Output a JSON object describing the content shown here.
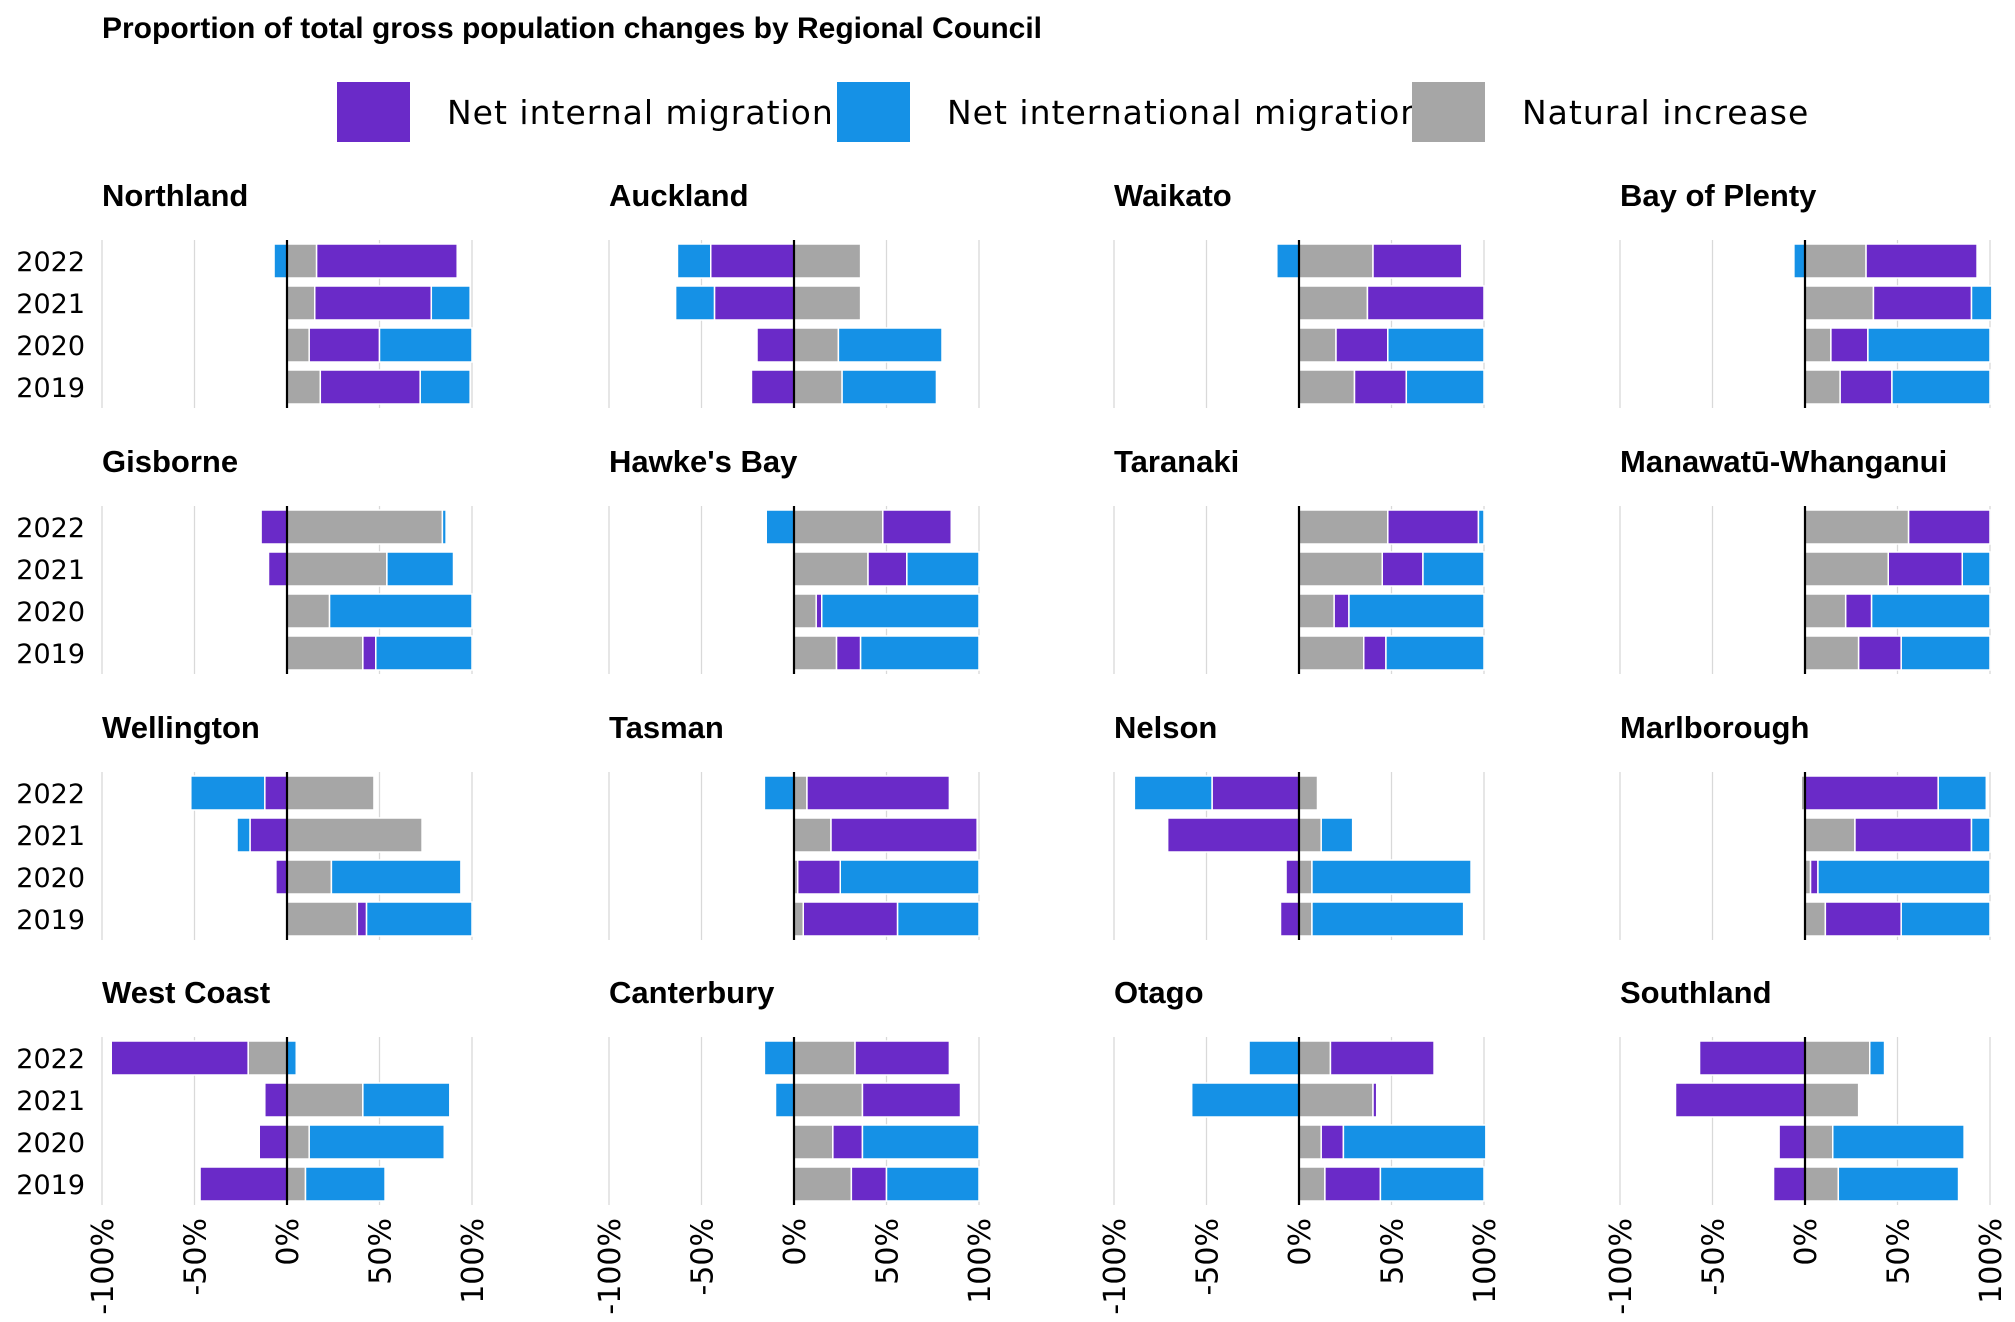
{
  "title": "Proportion of total gross population changes by Regional Council",
  "colors": {
    "internal": "#6a2ac8",
    "international": "#1591e6",
    "natural": "#a6a6a6",
    "grid": "#d9d9d9",
    "zero": "#000000"
  },
  "legend": [
    {
      "key": "internal",
      "label": "Net internal migration"
    },
    {
      "key": "international",
      "label": "Net international migration"
    },
    {
      "key": "natural",
      "label": "Natural increase"
    }
  ],
  "chart_data": {
    "type": "bar",
    "stacked": "diverging-horizontal",
    "title": "Proportion of total gross population changes by Regional Council",
    "years": [
      "2022",
      "2021",
      "2020",
      "2019"
    ],
    "xlim": [
      -100,
      100
    ],
    "xticks": [
      -100,
      -50,
      0,
      50,
      100
    ],
    "xtick_labels": [
      "-100%",
      "-50%",
      "0%",
      "50%",
      "100%"
    ],
    "grid": true,
    "legend_position": "top",
    "series_names": [
      "Net internal migration",
      "Net international migration",
      "Natural increase"
    ],
    "panels": [
      {
        "region": "Northland",
        "rows": [
          {
            "year": "2022",
            "natural": 16,
            "internal": 76,
            "international": -7
          },
          {
            "year": "2021",
            "natural": 15,
            "internal": 63,
            "international": 21
          },
          {
            "year": "2020",
            "natural": 12,
            "internal": 38,
            "international": 50
          },
          {
            "year": "2019",
            "natural": 18,
            "internal": 54,
            "international": 27
          }
        ]
      },
      {
        "region": "Auckland",
        "rows": [
          {
            "year": "2022",
            "natural": 36,
            "internal": -45,
            "international": -18
          },
          {
            "year": "2021",
            "natural": 36,
            "internal": -43,
            "international": -21
          },
          {
            "year": "2020",
            "natural": 24,
            "internal": -20,
            "international": 56
          },
          {
            "year": "2019",
            "natural": 26,
            "internal": -23,
            "international": 51
          }
        ]
      },
      {
        "region": "Waikato",
        "rows": [
          {
            "year": "2022",
            "natural": 40,
            "internal": 48,
            "international": -12
          },
          {
            "year": "2021",
            "natural": 37,
            "internal": 63,
            "international": 0
          },
          {
            "year": "2020",
            "natural": 20,
            "internal": 28,
            "international": 52
          },
          {
            "year": "2019",
            "natural": 30,
            "internal": 28,
            "international": 42
          }
        ]
      },
      {
        "region": "Bay of Plenty",
        "rows": [
          {
            "year": "2022",
            "natural": 33,
            "internal": 60,
            "international": -6
          },
          {
            "year": "2021",
            "natural": 37,
            "internal": 53,
            "international": 11
          },
          {
            "year": "2020",
            "natural": 14,
            "internal": 20,
            "international": 66
          },
          {
            "year": "2019",
            "natural": 19,
            "internal": 28,
            "international": 53
          }
        ]
      },
      {
        "region": "Gisborne",
        "rows": [
          {
            "year": "2022",
            "natural": 84,
            "internal": -14,
            "international": 2
          },
          {
            "year": "2021",
            "natural": 54,
            "internal": -10,
            "international": 36
          },
          {
            "year": "2020",
            "natural": 23,
            "internal": 0,
            "international": 77
          },
          {
            "year": "2019",
            "natural": 41,
            "internal": 7,
            "international": 52
          }
        ]
      },
      {
        "region": "Hawke's Bay",
        "rows": [
          {
            "year": "2022",
            "natural": 48,
            "internal": 37,
            "international": -15
          },
          {
            "year": "2021",
            "natural": 40,
            "internal": 21,
            "international": 39
          },
          {
            "year": "2020",
            "natural": 12,
            "internal": 3,
            "international": 85
          },
          {
            "year": "2019",
            "natural": 23,
            "internal": 13,
            "international": 64
          }
        ]
      },
      {
        "region": "Taranaki",
        "rows": [
          {
            "year": "2022",
            "natural": 48,
            "internal": 49,
            "international": 3
          },
          {
            "year": "2021",
            "natural": 45,
            "internal": 22,
            "international": 33
          },
          {
            "year": "2020",
            "natural": 19,
            "internal": 8,
            "international": 73
          },
          {
            "year": "2019",
            "natural": 35,
            "internal": 12,
            "international": 53
          }
        ]
      },
      {
        "region": "Manawatū-Whanganui",
        "rows": [
          {
            "year": "2022",
            "natural": 56,
            "internal": 44,
            "international": 0
          },
          {
            "year": "2021",
            "natural": 45,
            "internal": 40,
            "international": 15
          },
          {
            "year": "2020",
            "natural": 22,
            "internal": 14,
            "international": 64
          },
          {
            "year": "2019",
            "natural": 29,
            "internal": 23,
            "international": 48
          }
        ]
      },
      {
        "region": "Wellington",
        "rows": [
          {
            "year": "2022",
            "natural": 47,
            "internal": -12,
            "international": -40
          },
          {
            "year": "2021",
            "natural": 73,
            "internal": -20,
            "international": -7
          },
          {
            "year": "2020",
            "natural": 24,
            "internal": -6,
            "international": 70
          },
          {
            "year": "2019",
            "natural": 38,
            "internal": 5,
            "international": 57
          }
        ]
      },
      {
        "region": "Tasman",
        "rows": [
          {
            "year": "2022",
            "natural": 7,
            "internal": 77,
            "international": -16
          },
          {
            "year": "2021",
            "natural": 20,
            "internal": 79,
            "international": 0
          },
          {
            "year": "2020",
            "natural": 2,
            "internal": 23,
            "international": 75
          },
          {
            "year": "2019",
            "natural": 5,
            "internal": 51,
            "international": 44
          }
        ]
      },
      {
        "region": "Nelson",
        "rows": [
          {
            "year": "2022",
            "natural": 10,
            "internal": -47,
            "international": -42
          },
          {
            "year": "2021",
            "natural": 12,
            "internal": -71,
            "international": 17
          },
          {
            "year": "2020",
            "natural": 7,
            "internal": -7,
            "international": 86
          },
          {
            "year": "2019",
            "natural": 7,
            "internal": -10,
            "international": 82
          }
        ]
      },
      {
        "region": "Marlborough",
        "rows": [
          {
            "year": "2022",
            "natural": -2,
            "internal": 72,
            "international": 26
          },
          {
            "year": "2021",
            "natural": 27,
            "internal": 63,
            "international": 10
          },
          {
            "year": "2020",
            "natural": 3,
            "internal": 4,
            "international": 93
          },
          {
            "year": "2019",
            "natural": 11,
            "internal": 41,
            "international": 48
          }
        ]
      },
      {
        "region": "West Coast",
        "rows": [
          {
            "year": "2022",
            "natural": -21,
            "internal": -74,
            "international": 5
          },
          {
            "year": "2021",
            "natural": 41,
            "internal": -12,
            "international": 47
          },
          {
            "year": "2020",
            "natural": 12,
            "internal": -15,
            "international": 73
          },
          {
            "year": "2019",
            "natural": 10,
            "internal": -47,
            "international": 43
          }
        ]
      },
      {
        "region": "Canterbury",
        "rows": [
          {
            "year": "2022",
            "natural": 33,
            "internal": 51,
            "international": -16
          },
          {
            "year": "2021",
            "natural": 37,
            "internal": 53,
            "international": -10
          },
          {
            "year": "2020",
            "natural": 21,
            "internal": 16,
            "international": 63
          },
          {
            "year": "2019",
            "natural": 31,
            "internal": 19,
            "international": 50
          }
        ]
      },
      {
        "region": "Otago",
        "rows": [
          {
            "year": "2022",
            "natural": 17,
            "internal": 56,
            "international": -27
          },
          {
            "year": "2021",
            "natural": 40,
            "internal": 2,
            "international": -58
          },
          {
            "year": "2020",
            "natural": 12,
            "internal": 12,
            "international": 77
          },
          {
            "year": "2019",
            "natural": 14,
            "internal": 30,
            "international": 56
          }
        ]
      },
      {
        "region": "Southland",
        "rows": [
          {
            "year": "2022",
            "natural": 35,
            "internal": -57,
            "international": 8
          },
          {
            "year": "2021",
            "natural": 29,
            "internal": -70,
            "international": 0
          },
          {
            "year": "2020",
            "natural": 15,
            "internal": -14,
            "international": 71
          },
          {
            "year": "2019",
            "natural": 18,
            "internal": -17,
            "international": 65
          }
        ]
      }
    ]
  }
}
